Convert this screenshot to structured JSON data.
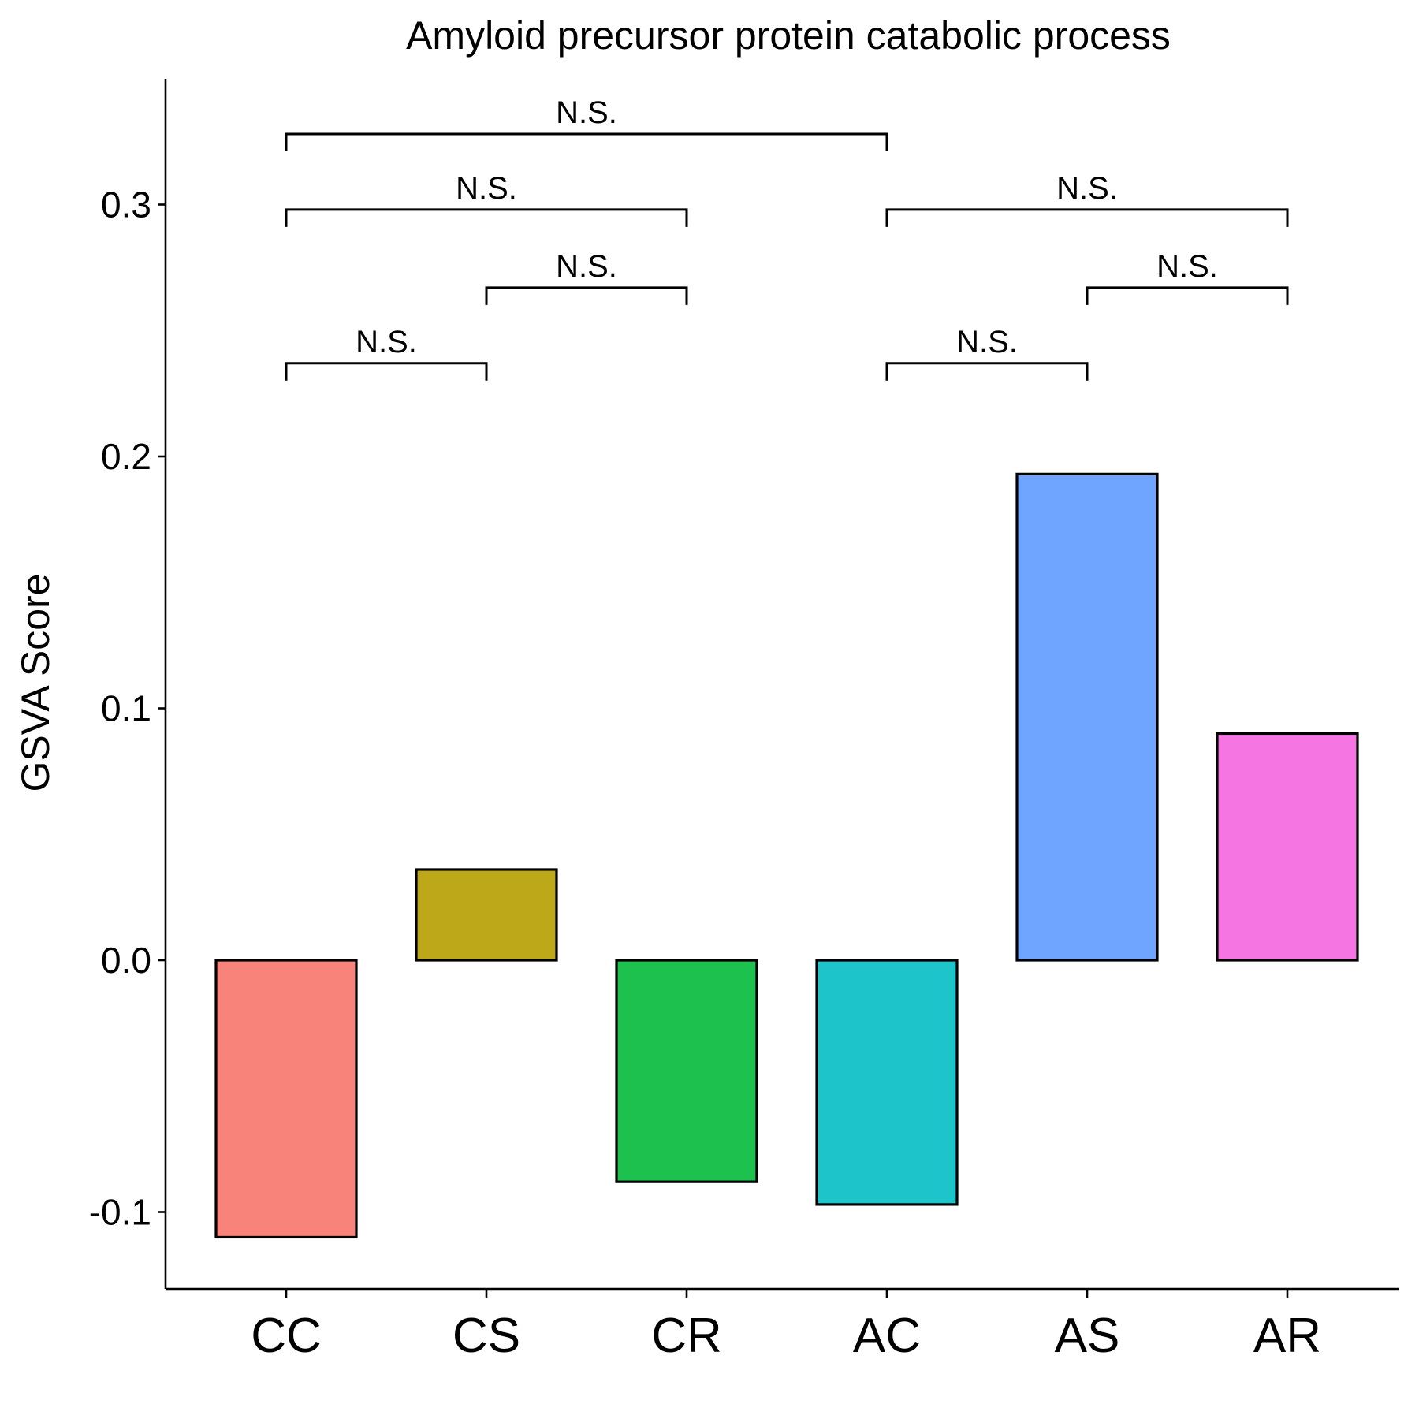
{
  "chart_data": {
    "type": "bar",
    "title": "Amyloid precursor protein catabolic process",
    "xlabel": "",
    "ylabel": "GSVA Score",
    "categories": [
      "CC",
      "CS",
      "CR",
      "AC",
      "AS",
      "AR"
    ],
    "values": [
      -0.11,
      0.036,
      -0.088,
      -0.097,
      0.193,
      0.09
    ],
    "colors": [
      "#F8837A",
      "#BDA81A",
      "#1DC14E",
      "#1DC5CB",
      "#70A5FF",
      "#F575E3"
    ],
    "ylim": [
      -0.13,
      0.35
    ],
    "yticks": [
      -0.1,
      0.0,
      0.1,
      0.2,
      0.3
    ],
    "ytick_labels": [
      "-0.1",
      "0.0",
      "0.1",
      "0.2",
      "0.3"
    ],
    "grid": false,
    "significance": [
      {
        "from": "CC",
        "to": "CS",
        "y": 0.237,
        "label": "N.S."
      },
      {
        "from": "CS",
        "to": "CR",
        "y": 0.267,
        "label": "N.S."
      },
      {
        "from": "CC",
        "to": "CR",
        "y": 0.298,
        "label": "N.S."
      },
      {
        "from": "CC",
        "to": "AC",
        "y": 0.328,
        "label": "N.S."
      },
      {
        "from": "AC",
        "to": "AS",
        "y": 0.237,
        "label": "N.S."
      },
      {
        "from": "AS",
        "to": "AR",
        "y": 0.267,
        "label": "N.S."
      },
      {
        "from": "AC",
        "to": "AR",
        "y": 0.298,
        "label": "N.S."
      }
    ]
  }
}
